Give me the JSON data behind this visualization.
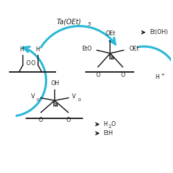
{
  "bg_color": "#ffffff",
  "arrow_color": "#2ab8d8",
  "text_color": "#1a1a1a",
  "fig_width": 2.5,
  "fig_height": 2.5,
  "dpi": 100,
  "top_label": "Ta(OEt)",
  "top_label_sub": "5",
  "r1_label1": "Et(OH)",
  "r1_label2": "H",
  "r1_label2_sup": "+",
  "b1_label1": "H",
  "b1_label1_sub": "2",
  "b1_label1_end": "O",
  "b1_label2": "EtH"
}
